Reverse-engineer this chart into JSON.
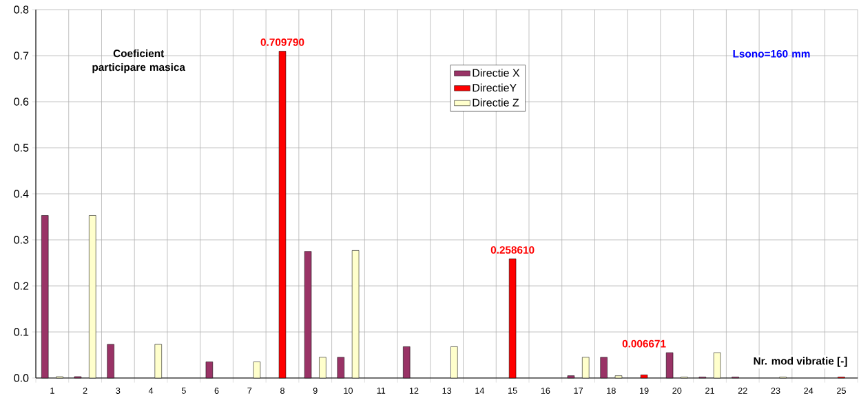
{
  "chart_data": {
    "type": "bar",
    "xlabel": "Nr. mod vibratie [-]",
    "annotations": [
      "Coeficient participare masica",
      "Lsono=160 mm"
    ],
    "categories": [
      "1",
      "2",
      "3",
      "4",
      "5",
      "6",
      "7",
      "8",
      "9",
      "10",
      "11",
      "12",
      "13",
      "14",
      "15",
      "16",
      "17",
      "18",
      "19",
      "20",
      "21",
      "22",
      "23",
      "24",
      "25"
    ],
    "series": [
      {
        "name": "Directie X",
        "color": "#993366",
        "values": [
          0.353,
          0.003,
          0.073,
          null,
          null,
          0.035,
          null,
          null,
          0.275,
          0.045,
          null,
          0.068,
          null,
          null,
          null,
          null,
          0.005,
          0.045,
          null,
          0.055,
          0.002,
          0.002,
          null,
          null,
          null
        ]
      },
      {
        "name": "DirectieY",
        "color": "#ff0000",
        "values": [
          null,
          null,
          null,
          null,
          null,
          null,
          null,
          0.70979,
          null,
          null,
          null,
          null,
          null,
          null,
          0.25861,
          null,
          null,
          null,
          0.006671,
          null,
          null,
          null,
          null,
          null,
          0.002
        ],
        "value_labels": [
          null,
          null,
          null,
          null,
          null,
          null,
          null,
          "0.709790",
          null,
          null,
          null,
          null,
          null,
          null,
          "0.258610",
          null,
          null,
          null,
          "0.006671",
          null,
          null,
          null,
          null,
          null,
          null
        ]
      },
      {
        "name": "Directie Z",
        "color": "#ffffcc",
        "values": [
          0.003,
          0.353,
          null,
          0.073,
          null,
          null,
          0.035,
          null,
          0.045,
          0.277,
          null,
          null,
          0.068,
          null,
          null,
          null,
          0.045,
          0.005,
          null,
          0.002,
          0.055,
          null,
          0.002,
          null,
          null
        ]
      }
    ],
    "ylim": [
      0,
      0.8
    ],
    "yticks": [
      {
        "value": 0,
        "label": "0.0"
      },
      0.1,
      0.2,
      0.3,
      0.4,
      0.5,
      0.6,
      0.7,
      0.8
    ],
    "grid": true,
    "legend": "top"
  }
}
